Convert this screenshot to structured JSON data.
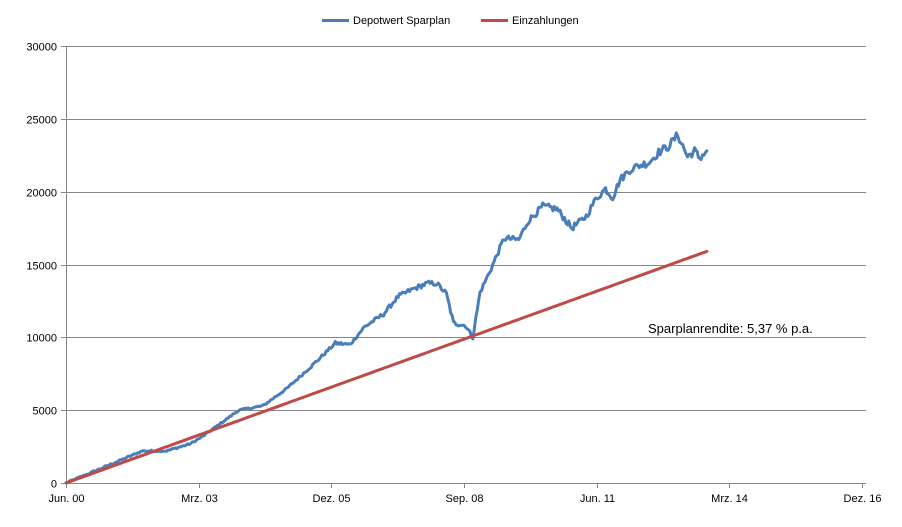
{
  "chart_data": {
    "type": "line",
    "title": "",
    "xlabel": "",
    "ylabel": "",
    "ylim": [
      0,
      30000
    ],
    "yticks": [
      0,
      5000,
      10000,
      15000,
      20000,
      25000,
      30000
    ],
    "ytick_labels": [
      "0",
      "5000",
      "10000",
      "15000",
      "20000",
      "25000",
      "30000"
    ],
    "xlim": [
      2000.417,
      2017.0
    ],
    "xticks": [
      2000.417,
      2003.167,
      2005.917,
      2008.667,
      2011.417,
      2014.167,
      2016.917
    ],
    "xtick_labels": [
      "Jun. 00",
      "Mrz. 03",
      "Dez. 05",
      "Sep. 08",
      "Jun. 11",
      "Mrz. 14",
      "Dez. 16"
    ],
    "grid": true,
    "legend_position": "top-center",
    "annotation": "Sparplanrendite: 5,37 % p.a.",
    "series": [
      {
        "name": "Depotwert Sparplan",
        "color": "#4a7ebb",
        "x": [
          2000.42,
          2001.0,
          2001.5,
          2002.0,
          2002.5,
          2003.0,
          2003.25,
          2003.75,
          2004.0,
          2004.5,
          2005.0,
          2005.5,
          2006.0,
          2006.3,
          2006.6,
          2007.0,
          2007.3,
          2007.6,
          2007.9,
          2008.1,
          2008.3,
          2008.45,
          2008.55,
          2008.7,
          2008.85,
          2009.0,
          2009.2,
          2009.5,
          2009.8,
          2010.0,
          2010.3,
          2010.6,
          2010.9,
          2011.2,
          2011.4,
          2011.6,
          2011.75,
          2011.9,
          2012.1,
          2012.3,
          2012.5,
          2012.7,
          2012.9,
          2013.1,
          2013.3,
          2013.45,
          2013.55,
          2013.7
        ],
        "values": [
          0,
          800,
          1500,
          2200,
          2200,
          2700,
          3200,
          4400,
          5000,
          5300,
          6500,
          8000,
          9600,
          9500,
          10700,
          11600,
          12800,
          13300,
          13700,
          13700,
          13000,
          11000,
          10900,
          10800,
          10000,
          13100,
          14500,
          16800,
          16700,
          18000,
          19000,
          18800,
          17500,
          18300,
          19500,
          20200,
          19600,
          20800,
          21500,
          21800,
          22000,
          22700,
          23100,
          23900,
          22400,
          22800,
          22300,
          22800
        ]
      },
      {
        "name": "Einzahlungen",
        "color": "#be4b48",
        "x": [
          2000.42,
          2013.7
        ],
        "values": [
          0,
          15900
        ]
      }
    ]
  }
}
